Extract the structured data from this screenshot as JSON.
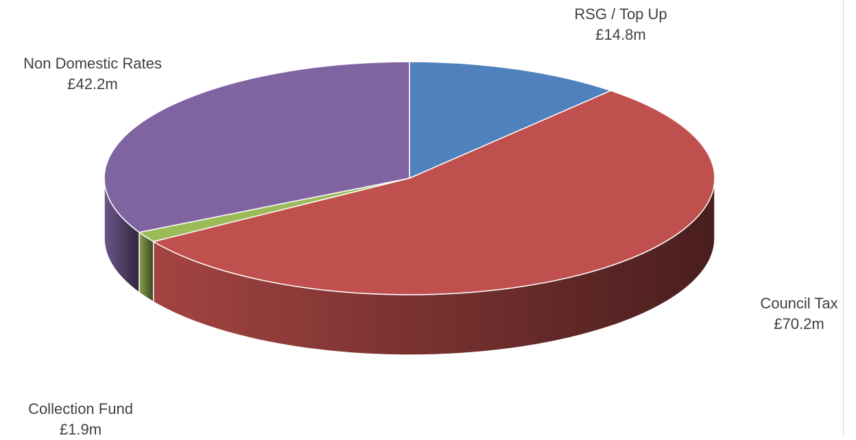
{
  "chart_data": {
    "type": "pie",
    "three_d": true,
    "legend": "none",
    "slices": [
      {
        "name": "RSG / Top Up",
        "value": 14.8,
        "value_label": "£14.8m",
        "color": "#4f81bd"
      },
      {
        "name": "Council Tax",
        "value": 70.2,
        "value_label": "£70.2m",
        "color": "#c0504d"
      },
      {
        "name": "Collection Fund",
        "value": 1.9,
        "value_label": "£1.9m",
        "color": "#9bbb59"
      },
      {
        "name": "Non Domestic Rates",
        "value": 42.2,
        "value_label": "£42.2m",
        "color": "#8064a2"
      }
    ]
  }
}
